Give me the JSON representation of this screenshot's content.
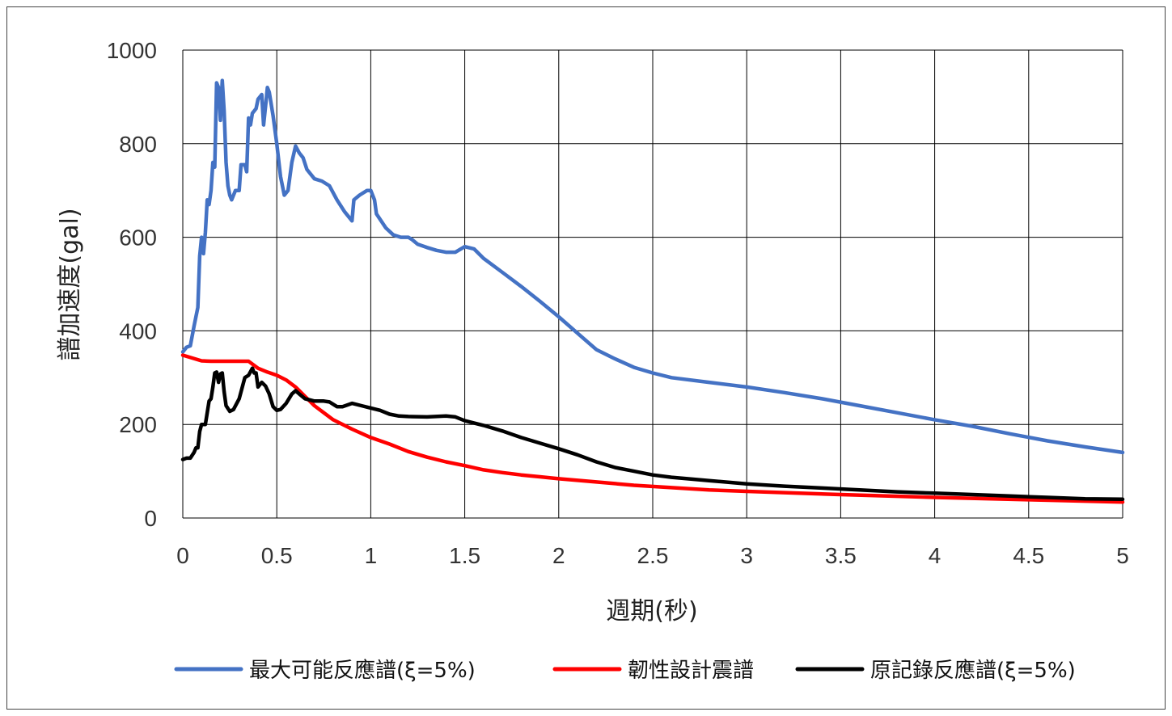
{
  "chart_data": {
    "type": "line",
    "xlabel": "週期(秒)",
    "ylabel": "譜加速度(gal)",
    "xlim": [
      0,
      5
    ],
    "ylim": [
      0,
      1000
    ],
    "x_ticks": [
      "0",
      "0.5",
      "1",
      "1.5",
      "2",
      "2.5",
      "3",
      "3.5",
      "4",
      "4.5",
      "5"
    ],
    "y_ticks": [
      "0",
      "200",
      "400",
      "600",
      "800",
      "1000"
    ],
    "grid": true,
    "legend_position": "bottom",
    "series": [
      {
        "name": "最大可能反應譜(ξ=5%)",
        "color": "#4472C4",
        "points": [
          [
            0.0,
            355
          ],
          [
            0.02,
            365
          ],
          [
            0.04,
            368
          ],
          [
            0.06,
            410
          ],
          [
            0.08,
            450
          ],
          [
            0.09,
            560
          ],
          [
            0.1,
            600
          ],
          [
            0.11,
            565
          ],
          [
            0.12,
            610
          ],
          [
            0.13,
            680
          ],
          [
            0.14,
            670
          ],
          [
            0.15,
            700
          ],
          [
            0.16,
            760
          ],
          [
            0.17,
            750
          ],
          [
            0.18,
            930
          ],
          [
            0.19,
            920
          ],
          [
            0.2,
            850
          ],
          [
            0.21,
            935
          ],
          [
            0.22,
            870
          ],
          [
            0.23,
            760
          ],
          [
            0.24,
            710
          ],
          [
            0.25,
            690
          ],
          [
            0.26,
            680
          ],
          [
            0.28,
            700
          ],
          [
            0.3,
            700
          ],
          [
            0.31,
            755
          ],
          [
            0.33,
            755
          ],
          [
            0.34,
            740
          ],
          [
            0.35,
            855
          ],
          [
            0.36,
            840
          ],
          [
            0.37,
            865
          ],
          [
            0.39,
            875
          ],
          [
            0.4,
            895
          ],
          [
            0.42,
            905
          ],
          [
            0.43,
            840
          ],
          [
            0.44,
            880
          ],
          [
            0.45,
            920
          ],
          [
            0.46,
            910
          ],
          [
            0.48,
            860
          ],
          [
            0.5,
            800
          ],
          [
            0.52,
            730
          ],
          [
            0.54,
            690
          ],
          [
            0.56,
            700
          ],
          [
            0.58,
            760
          ],
          [
            0.6,
            795
          ],
          [
            0.62,
            780
          ],
          [
            0.64,
            770
          ],
          [
            0.66,
            745
          ],
          [
            0.7,
            725
          ],
          [
            0.74,
            720
          ],
          [
            0.78,
            710
          ],
          [
            0.82,
            680
          ],
          [
            0.86,
            655
          ],
          [
            0.9,
            635
          ],
          [
            0.91,
            680
          ],
          [
            0.94,
            690
          ],
          [
            0.98,
            700
          ],
          [
            1.0,
            700
          ],
          [
            1.02,
            680
          ],
          [
            1.03,
            650
          ],
          [
            1.08,
            620
          ],
          [
            1.12,
            605
          ],
          [
            1.16,
            600
          ],
          [
            1.2,
            600
          ],
          [
            1.22,
            595
          ],
          [
            1.25,
            585
          ],
          [
            1.3,
            578
          ],
          [
            1.35,
            572
          ],
          [
            1.4,
            568
          ],
          [
            1.45,
            568
          ],
          [
            1.5,
            580
          ],
          [
            1.55,
            575
          ],
          [
            1.6,
            555
          ],
          [
            1.7,
            525
          ],
          [
            1.8,
            495
          ],
          [
            1.9,
            463
          ],
          [
            2.0,
            430
          ],
          [
            2.1,
            395
          ],
          [
            2.2,
            360
          ],
          [
            2.3,
            340
          ],
          [
            2.4,
            322
          ],
          [
            2.5,
            310
          ],
          [
            2.6,
            300
          ],
          [
            2.8,
            290
          ],
          [
            3.0,
            280
          ],
          [
            3.2,
            268
          ],
          [
            3.4,
            255
          ],
          [
            3.6,
            240
          ],
          [
            3.8,
            225
          ],
          [
            4.0,
            210
          ],
          [
            4.2,
            196
          ],
          [
            4.4,
            180
          ],
          [
            4.6,
            165
          ],
          [
            4.8,
            152
          ],
          [
            5.0,
            140
          ]
        ]
      },
      {
        "name": "韌性設計震譜",
        "color": "#FF0000",
        "points": [
          [
            0.0,
            348
          ],
          [
            0.05,
            342
          ],
          [
            0.1,
            336
          ],
          [
            0.15,
            335
          ],
          [
            0.2,
            335
          ],
          [
            0.25,
            335
          ],
          [
            0.3,
            335
          ],
          [
            0.35,
            335
          ],
          [
            0.4,
            320
          ],
          [
            0.45,
            312
          ],
          [
            0.5,
            305
          ],
          [
            0.55,
            295
          ],
          [
            0.6,
            280
          ],
          [
            0.7,
            240
          ],
          [
            0.8,
            210
          ],
          [
            0.9,
            190
          ],
          [
            1.0,
            172
          ],
          [
            1.1,
            158
          ],
          [
            1.2,
            142
          ],
          [
            1.3,
            130
          ],
          [
            1.4,
            120
          ],
          [
            1.5,
            112
          ],
          [
            1.6,
            103
          ],
          [
            1.7,
            97
          ],
          [
            1.8,
            92
          ],
          [
            1.9,
            88
          ],
          [
            2.0,
            84
          ],
          [
            2.2,
            77
          ],
          [
            2.4,
            70
          ],
          [
            2.6,
            65
          ],
          [
            2.8,
            60
          ],
          [
            3.0,
            57
          ],
          [
            3.5,
            50
          ],
          [
            4.0,
            44
          ],
          [
            4.5,
            39
          ],
          [
            5.0,
            34
          ]
        ]
      },
      {
        "name": "原記錄反應譜(ξ=5%)",
        "color": "#000000",
        "points": [
          [
            0.0,
            125
          ],
          [
            0.02,
            128
          ],
          [
            0.04,
            128
          ],
          [
            0.06,
            140
          ],
          [
            0.07,
            150
          ],
          [
            0.08,
            150
          ],
          [
            0.09,
            185
          ],
          [
            0.1,
            200
          ],
          [
            0.12,
            200
          ],
          [
            0.14,
            250
          ],
          [
            0.15,
            255
          ],
          [
            0.16,
            280
          ],
          [
            0.17,
            310
          ],
          [
            0.18,
            312
          ],
          [
            0.19,
            290
          ],
          [
            0.2,
            308
          ],
          [
            0.21,
            310
          ],
          [
            0.22,
            270
          ],
          [
            0.23,
            240
          ],
          [
            0.25,
            228
          ],
          [
            0.27,
            232
          ],
          [
            0.3,
            255
          ],
          [
            0.33,
            300
          ],
          [
            0.35,
            305
          ],
          [
            0.37,
            320
          ],
          [
            0.38,
            310
          ],
          [
            0.39,
            310
          ],
          [
            0.4,
            280
          ],
          [
            0.42,
            290
          ],
          [
            0.44,
            282
          ],
          [
            0.46,
            265
          ],
          [
            0.48,
            238
          ],
          [
            0.5,
            230
          ],
          [
            0.52,
            232
          ],
          [
            0.55,
            245
          ],
          [
            0.58,
            265
          ],
          [
            0.6,
            272
          ],
          [
            0.62,
            265
          ],
          [
            0.65,
            255
          ],
          [
            0.7,
            250
          ],
          [
            0.75,
            250
          ],
          [
            0.78,
            248
          ],
          [
            0.82,
            238
          ],
          [
            0.85,
            238
          ],
          [
            0.9,
            245
          ],
          [
            0.95,
            240
          ],
          [
            1.0,
            235
          ],
          [
            1.05,
            230
          ],
          [
            1.1,
            222
          ],
          [
            1.15,
            218
          ],
          [
            1.2,
            217
          ],
          [
            1.3,
            216
          ],
          [
            1.4,
            218
          ],
          [
            1.45,
            216
          ],
          [
            1.5,
            208
          ],
          [
            1.6,
            198
          ],
          [
            1.7,
            186
          ],
          [
            1.8,
            172
          ],
          [
            1.9,
            160
          ],
          [
            2.0,
            148
          ],
          [
            2.1,
            135
          ],
          [
            2.2,
            120
          ],
          [
            2.3,
            108
          ],
          [
            2.4,
            100
          ],
          [
            2.5,
            92
          ],
          [
            2.6,
            87
          ],
          [
            2.8,
            80
          ],
          [
            3.0,
            73
          ],
          [
            3.2,
            68
          ],
          [
            3.4,
            64
          ],
          [
            3.6,
            60
          ],
          [
            3.8,
            56
          ],
          [
            4.0,
            53
          ],
          [
            4.2,
            50
          ],
          [
            4.4,
            47
          ],
          [
            4.6,
            44
          ],
          [
            4.8,
            41
          ],
          [
            5.0,
            40
          ]
        ]
      }
    ]
  }
}
